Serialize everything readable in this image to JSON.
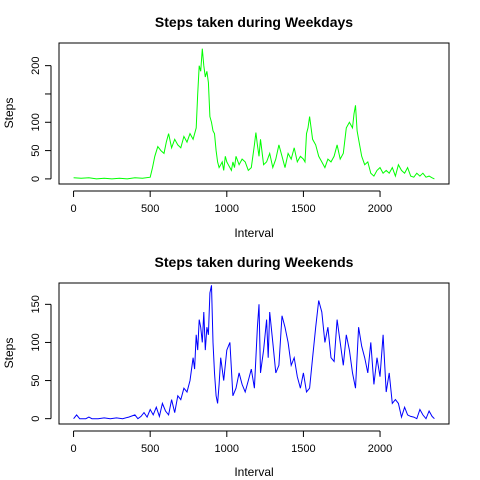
{
  "chart_data": [
    {
      "type": "line",
      "title": "Steps taken during Weekdays",
      "xlabel": "Interval",
      "ylabel": "Steps",
      "xlim": [
        -95,
        2450
      ],
      "ylim": [
        -9,
        240
      ],
      "xticks": [
        0,
        500,
        1000,
        1500,
        2000
      ],
      "yticks": [
        0,
        50,
        100,
        200
      ],
      "yticks_unlabeled": [
        150
      ],
      "grid": false,
      "legend": "none",
      "series": [
        {
          "color": "#00ff00",
          "x": [
            0,
            50,
            100,
            150,
            200,
            250,
            300,
            350,
            400,
            450,
            500,
            515,
            530,
            550,
            570,
            590,
            605,
            620,
            640,
            660,
            680,
            700,
            720,
            740,
            760,
            780,
            800,
            810,
            820,
            830,
            840,
            850,
            860,
            870,
            880,
            890,
            900,
            910,
            920,
            930,
            940,
            950,
            960,
            970,
            980,
            990,
            1000,
            1010,
            1020,
            1030,
            1040,
            1050,
            1060,
            1080,
            1100,
            1120,
            1140,
            1160,
            1180,
            1190,
            1200,
            1210,
            1220,
            1240,
            1260,
            1280,
            1300,
            1320,
            1340,
            1360,
            1380,
            1400,
            1420,
            1440,
            1460,
            1480,
            1500,
            1510,
            1520,
            1530,
            1540,
            1560,
            1580,
            1600,
            1620,
            1640,
            1660,
            1680,
            1700,
            1720,
            1740,
            1760,
            1780,
            1800,
            1820,
            1830,
            1840,
            1850,
            1860,
            1880,
            1900,
            1920,
            1940,
            1960,
            1980,
            2000,
            2020,
            2040,
            2060,
            2080,
            2100,
            2120,
            2140,
            2160,
            2180,
            2200,
            2220,
            2240,
            2260,
            2280,
            2300,
            2320,
            2340,
            2355
          ],
          "values": [
            2,
            1,
            2,
            0,
            1,
            0,
            1,
            0,
            2,
            1,
            3,
            20,
            40,
            57,
            50,
            45,
            65,
            80,
            55,
            70,
            60,
            55,
            75,
            65,
            80,
            70,
            90,
            150,
            200,
            190,
            230,
            200,
            180,
            190,
            170,
            110,
            100,
            85,
            80,
            50,
            30,
            20,
            25,
            30,
            15,
            40,
            30,
            25,
            20,
            15,
            30,
            20,
            40,
            25,
            35,
            30,
            15,
            20,
            60,
            82,
            60,
            40,
            70,
            25,
            30,
            45,
            20,
            35,
            60,
            40,
            20,
            45,
            35,
            55,
            30,
            40,
            35,
            30,
            80,
            90,
            110,
            70,
            60,
            40,
            30,
            20,
            35,
            30,
            40,
            60,
            35,
            45,
            90,
            100,
            90,
            115,
            130,
            85,
            70,
            40,
            25,
            30,
            10,
            5,
            15,
            20,
            10,
            15,
            10,
            20,
            5,
            25,
            15,
            10,
            20,
            5,
            3,
            10,
            5,
            10,
            3,
            5,
            2,
            0
          ]
        }
      ]
    },
    {
      "type": "line",
      "title": "Steps taken during Weekends",
      "xlabel": "Interval",
      "ylabel": "Steps",
      "xlim": [
        -95,
        2450
      ],
      "ylim": [
        -7,
        178
      ],
      "xticks": [
        0,
        500,
        1000,
        1500,
        2000
      ],
      "yticks": [
        0,
        50,
        100,
        150
      ],
      "grid": false,
      "legend": "none",
      "series": [
        {
          "color": "#0000ff",
          "x": [
            0,
            20,
            40,
            60,
            80,
            100,
            120,
            140,
            160,
            200,
            240,
            280,
            320,
            360,
            400,
            420,
            440,
            460,
            480,
            500,
            520,
            540,
            560,
            580,
            600,
            620,
            640,
            660,
            680,
            700,
            720,
            740,
            760,
            780,
            790,
            800,
            810,
            820,
            830,
            840,
            850,
            860,
            870,
            880,
            890,
            900,
            910,
            920,
            930,
            940,
            950,
            960,
            980,
            1000,
            1020,
            1040,
            1060,
            1080,
            1100,
            1120,
            1140,
            1160,
            1180,
            1200,
            1210,
            1220,
            1240,
            1260,
            1270,
            1280,
            1300,
            1320,
            1340,
            1360,
            1380,
            1400,
            1420,
            1440,
            1460,
            1480,
            1500,
            1520,
            1540,
            1560,
            1580,
            1600,
            1620,
            1640,
            1660,
            1680,
            1700,
            1720,
            1740,
            1760,
            1780,
            1800,
            1820,
            1840,
            1860,
            1880,
            1900,
            1920,
            1940,
            1960,
            1980,
            2000,
            2020,
            2040,
            2060,
            2080,
            2100,
            2120,
            2140,
            2160,
            2180,
            2200,
            2220,
            2240,
            2260,
            2280,
            2300,
            2320,
            2340,
            2355
          ],
          "values": [
            0,
            5,
            0,
            0,
            0,
            2,
            0,
            0,
            0,
            1,
            0,
            1,
            0,
            2,
            5,
            0,
            3,
            8,
            2,
            12,
            5,
            15,
            3,
            20,
            10,
            5,
            25,
            8,
            30,
            25,
            40,
            35,
            50,
            80,
            65,
            110,
            90,
            130,
            120,
            100,
            140,
            90,
            120,
            110,
            165,
            175,
            100,
            60,
            30,
            20,
            45,
            80,
            50,
            90,
            100,
            30,
            40,
            60,
            45,
            35,
            50,
            65,
            40,
            120,
            150,
            60,
            90,
            130,
            80,
            140,
            100,
            60,
            70,
            135,
            120,
            100,
            70,
            80,
            55,
            40,
            60,
            35,
            40,
            80,
            120,
            155,
            140,
            100,
            120,
            80,
            75,
            130,
            100,
            70,
            110,
            90,
            60,
            40,
            120,
            95,
            80,
            60,
            100,
            45,
            80,
            55,
            110,
            35,
            60,
            20,
            25,
            20,
            2,
            15,
            5,
            3,
            2,
            0,
            12,
            5,
            0,
            10,
            3,
            0
          ]
        }
      ]
    }
  ]
}
